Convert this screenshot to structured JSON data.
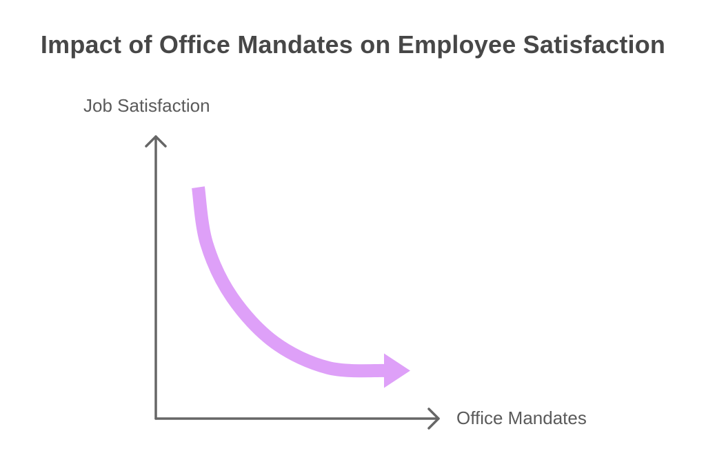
{
  "chart_data": {
    "type": "line",
    "title": "Impact of Office Mandates on Employee Satisfaction",
    "xlabel": "Office Mandates",
    "ylabel": "Job Satisfaction",
    "grid": false,
    "trend": "decreasing",
    "series": [
      {
        "x": [
          0.15,
          0.18,
          0.27,
          0.42,
          0.61,
          0.9
        ],
        "y": [
          0.82,
          0.62,
          0.43,
          0.27,
          0.18,
          0.17
        ]
      }
    ],
    "xlim": [
      0,
      1
    ],
    "ylim": [
      0,
      1
    ]
  },
  "colors": {
    "curve": "#dea0f8",
    "axes": "#666666",
    "title": "#474747",
    "labels": "#5a5a5a"
  }
}
